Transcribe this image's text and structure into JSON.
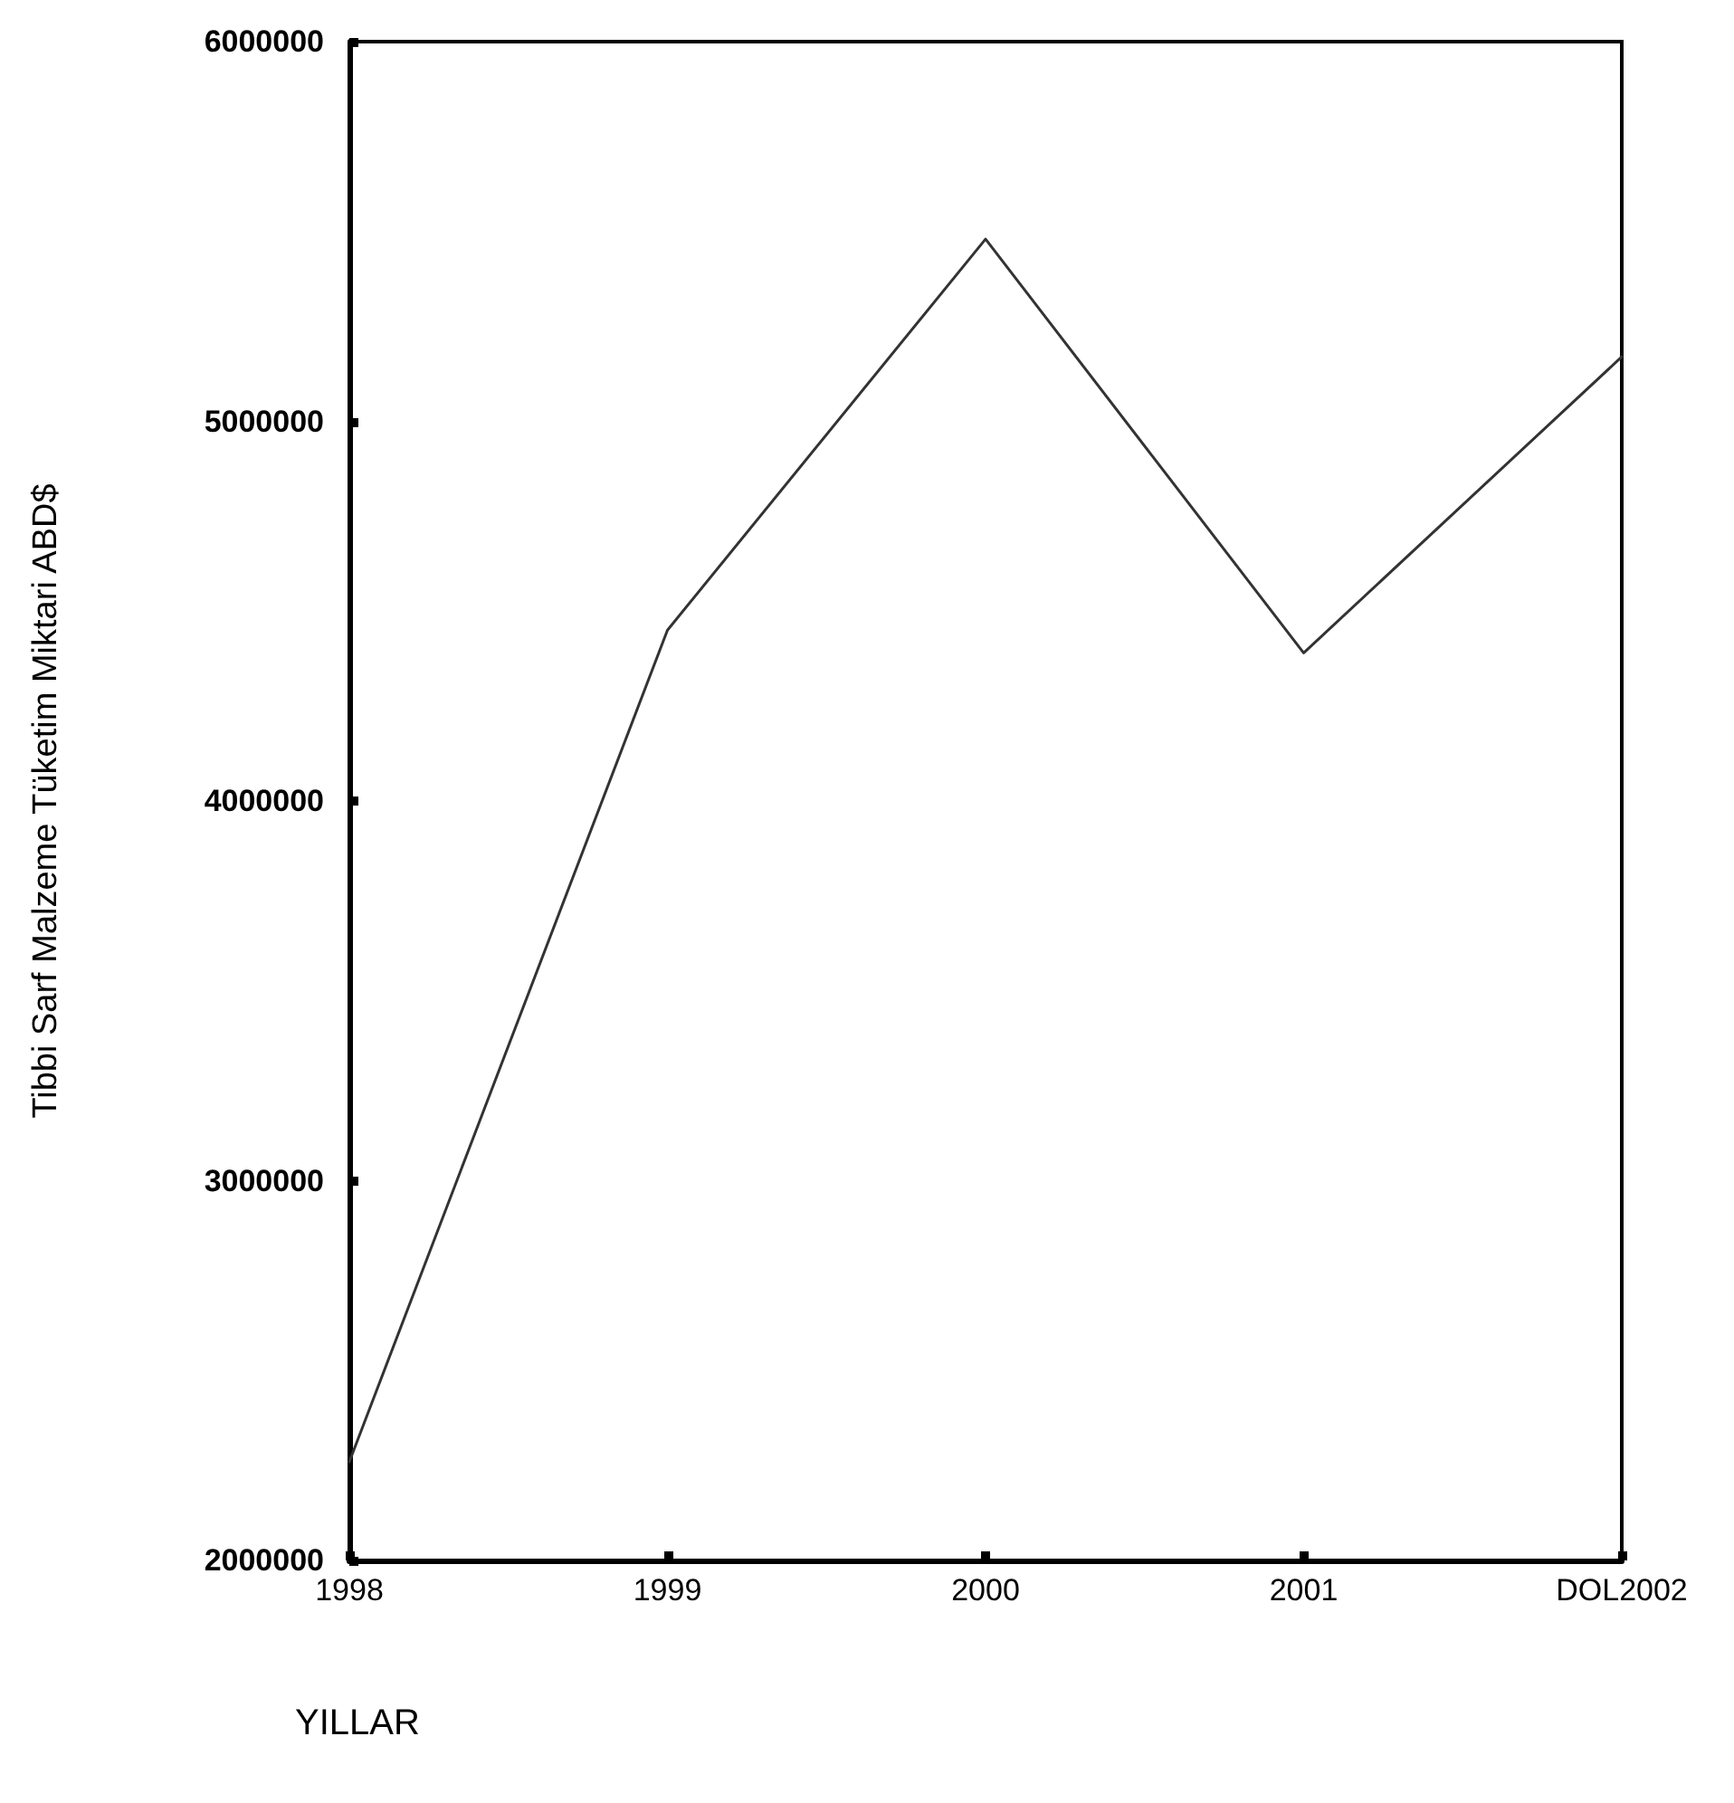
{
  "chart_data": {
    "type": "line",
    "xlabel": "YILLAR",
    "ylabel": "Tibbi Sarf Malzeme Tüketim Miktari ABD$",
    "categories": [
      "1998",
      "1999",
      "2000",
      "2001",
      "DOL2002"
    ],
    "series": [
      {
        "color": "#333333",
        "values": [
          2260000,
          4450000,
          5480000,
          4390000,
          5170000
        ]
      }
    ],
    "ylim": [
      2000000,
      6000000
    ],
    "yticks": [
      2000000,
      3000000,
      4000000,
      5000000,
      6000000
    ],
    "grid": false,
    "marker": "none",
    "line_style": "solid"
  }
}
